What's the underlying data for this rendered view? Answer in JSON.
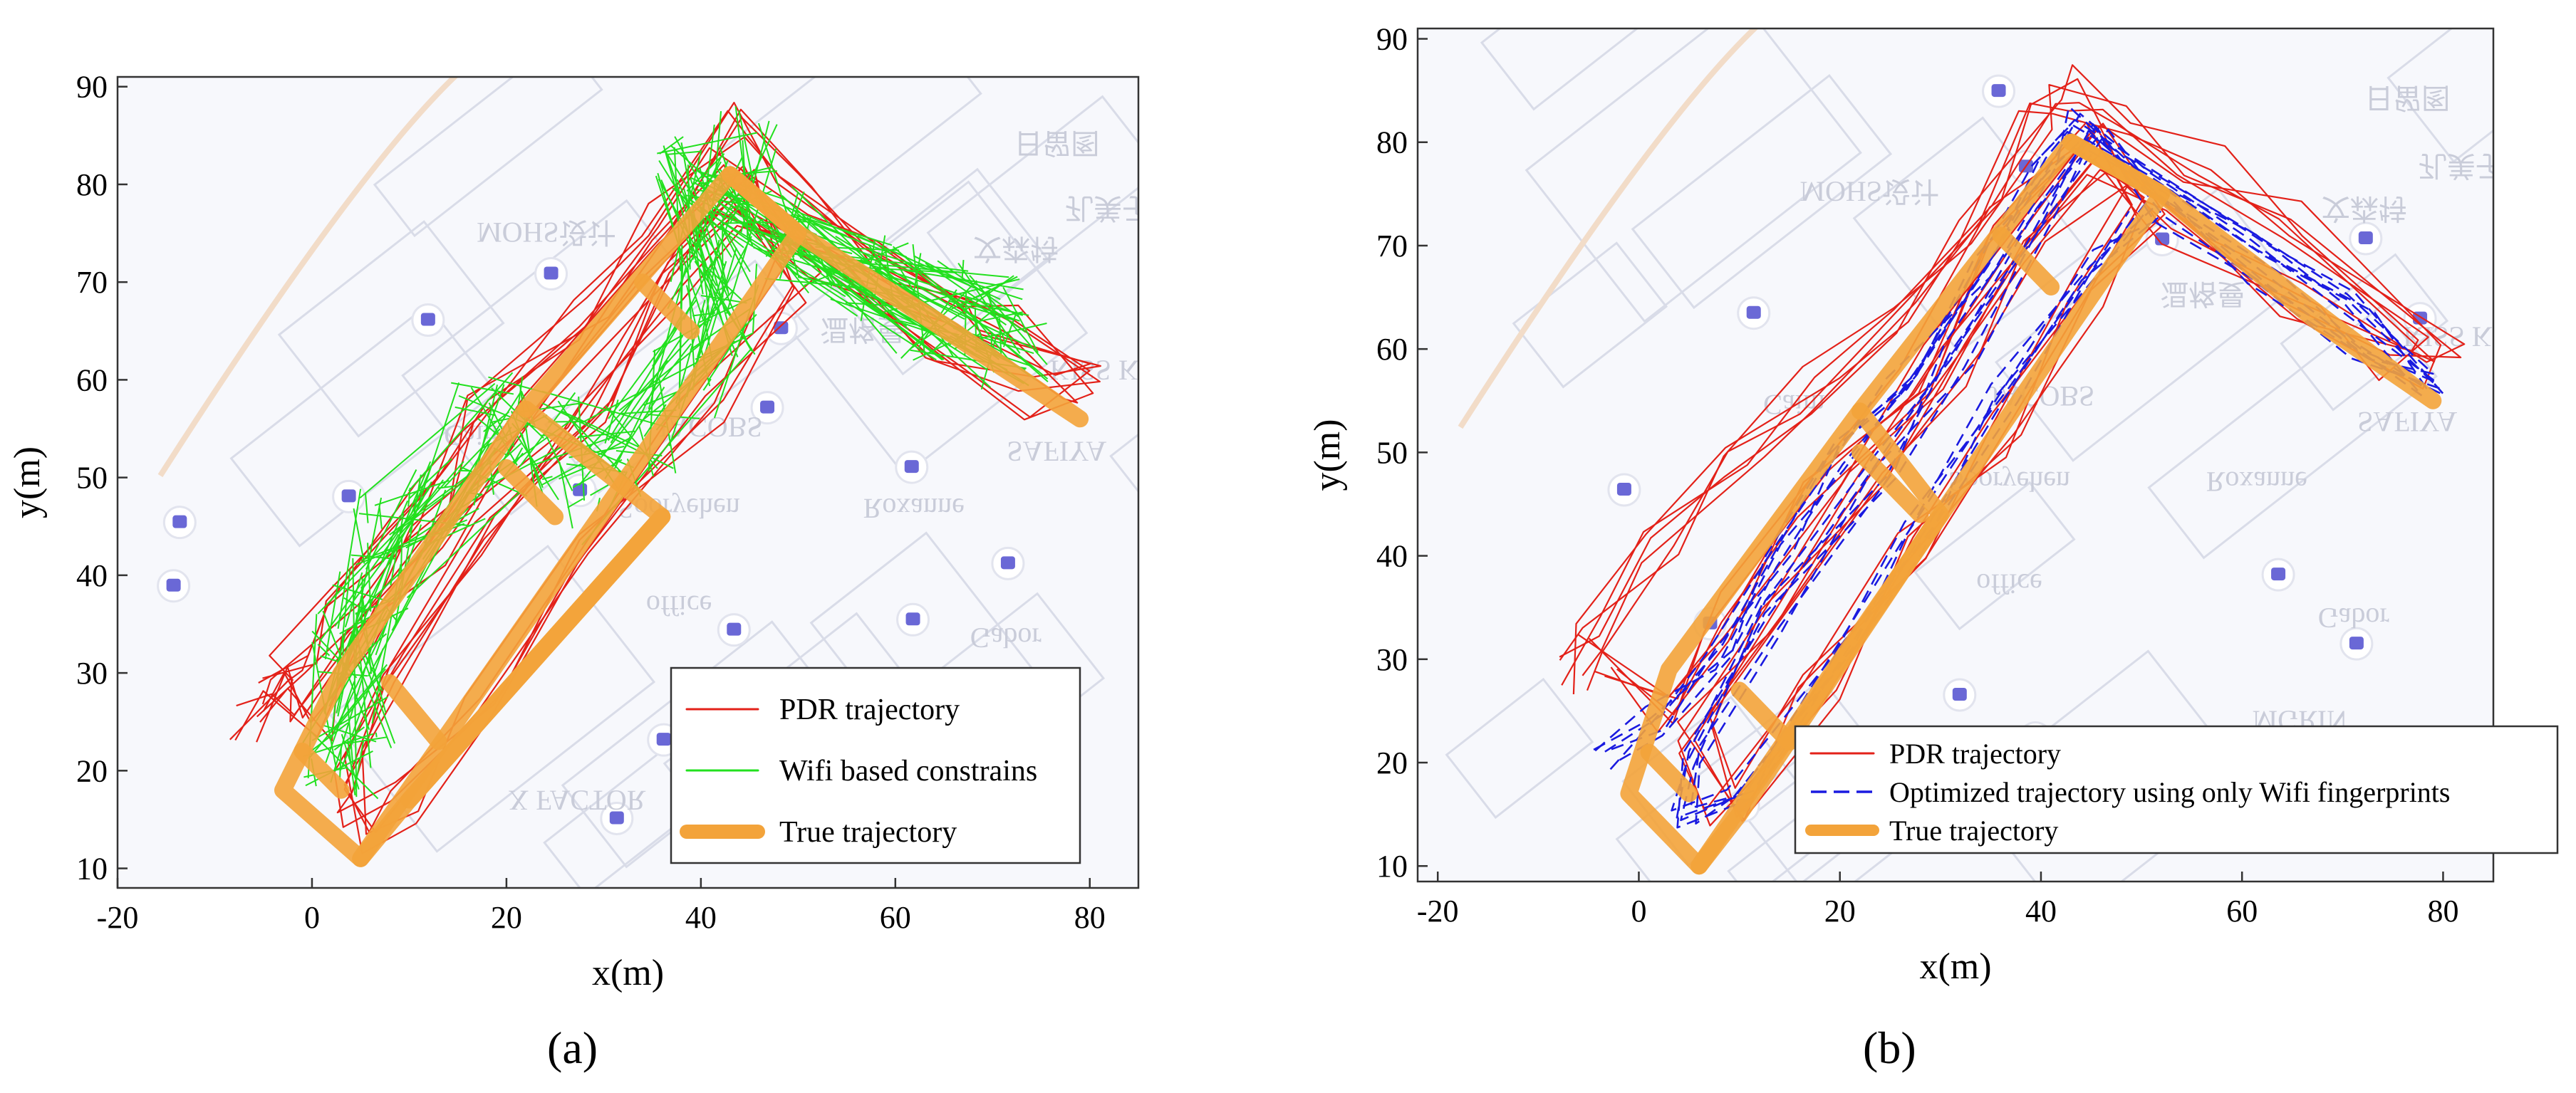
{
  "colors": {
    "pdr": "#e32119",
    "wifi": "#22e01e",
    "optimized": "#1a1ae0",
    "truth": "#f3a33a",
    "map_bg": "#f7f8fc",
    "map_lines": "#d9dce8",
    "map_poi": "#6a68d6",
    "map_text": "#c9ccd9"
  },
  "map_labels": [
    "MOHS设计",
    "Caim",
    "JACOBS",
    "Sooryehen",
    "Roxanne",
    "office",
    "Gabor",
    "X FACTOR",
    "SAFIYA",
    "文森特",
    "温格曼",
    "日留图",
    "MGRIN",
    "KISS KIT",
    "孔美子"
  ],
  "panels": [
    {
      "label": "(a)",
      "chart_data": {
        "type": "line",
        "xlabel": "x(m)",
        "ylabel": "y(m)",
        "xlim": [
          -20,
          85
        ],
        "ylim": [
          8,
          91
        ],
        "xticks": [
          -20,
          0,
          20,
          40,
          60,
          80
        ],
        "yticks": [
          10,
          20,
          30,
          40,
          50,
          60,
          70,
          80,
          90
        ],
        "grid": false,
        "legend_position": "bottom-right",
        "series": [
          {
            "name": "PDR trajectory",
            "style": "pdr"
          },
          {
            "name": "Wifi based constrains",
            "style": "wifi"
          },
          {
            "name": "True trajectory",
            "style": "truth"
          }
        ],
        "true_trajectory": [
          [
            [
              -3,
              18
            ],
            [
              5,
              11
            ],
            [
              10,
              17
            ],
            [
              36,
              46
            ],
            [
              22,
              57
            ],
            [
              3,
              30
            ],
            [
              -3,
              18
            ]
          ],
          [
            [
              5,
              11
            ],
            [
              50,
              75
            ],
            [
              43,
              81
            ],
            [
              22,
              57
            ]
          ],
          [
            [
              -1,
              22
            ],
            [
              3,
              18
            ]
          ],
          [
            [
              8,
              29
            ],
            [
              13,
              23
            ]
          ],
          [
            [
              10,
              17
            ],
            [
              36,
              46
            ]
          ],
          [
            [
              20,
              51
            ],
            [
              25,
              46
            ]
          ],
          [
            [
              34,
              70
            ],
            [
              39,
              65
            ]
          ],
          [
            [
              43,
              81
            ],
            [
              50,
              75
            ],
            [
              79,
              56
            ],
            [
              66,
              65
            ],
            [
              50,
              75
            ]
          ]
        ],
        "pdr_base": [
          [
            -4,
            28
          ],
          [
            -2,
            31
          ],
          [
            3,
            37
          ],
          [
            12,
            48
          ],
          [
            18,
            56
          ],
          [
            29,
            66
          ],
          [
            36,
            76
          ],
          [
            43,
            86
          ],
          [
            49,
            79
          ],
          [
            58,
            72
          ],
          [
            66,
            69
          ],
          [
            71,
            66
          ],
          [
            79,
            60
          ],
          [
            75,
            58
          ],
          [
            65,
            64
          ],
          [
            52,
            73
          ],
          [
            44,
            78
          ],
          [
            36,
            70
          ],
          [
            30,
            58
          ],
          [
            18,
            44
          ],
          [
            8,
            30
          ],
          [
            3,
            20
          ],
          [
            5,
            14
          ],
          [
            9,
            17
          ],
          [
            18,
            28
          ],
          [
            28,
            42
          ],
          [
            40,
            58
          ],
          [
            50,
            70
          ],
          [
            44,
            80
          ],
          [
            36,
            72
          ],
          [
            24,
            57
          ],
          [
            12,
            43
          ],
          [
            4,
            32
          ],
          [
            0,
            24
          ],
          [
            -3,
            30
          ],
          [
            -6,
            25
          ]
        ],
        "wifi_base": [
          [
            3,
            21
          ],
          [
            5,
            26
          ],
          [
            4,
            33
          ],
          [
            6,
            38
          ],
          [
            8,
            45
          ],
          [
            14,
            48
          ],
          [
            20,
            52
          ],
          [
            18,
            57
          ],
          [
            24,
            55
          ],
          [
            27,
            47
          ],
          [
            30,
            52
          ],
          [
            34,
            54
          ],
          [
            38,
            60
          ],
          [
            42,
            66
          ],
          [
            40,
            70
          ],
          [
            42,
            75
          ],
          [
            39,
            82
          ],
          [
            44,
            84
          ],
          [
            42,
            78
          ],
          [
            48,
            76
          ],
          [
            54,
            72
          ],
          [
            60,
            70
          ],
          [
            64,
            69
          ],
          [
            67,
            66
          ],
          [
            70,
            67
          ],
          [
            72,
            63
          ],
          [
            64,
            66
          ],
          [
            56,
            71
          ],
          [
            48,
            74
          ]
        ]
      }
    },
    {
      "label": "(b)",
      "chart_data": {
        "type": "line",
        "xlabel": "x(m)",
        "ylabel": "y(m)",
        "xlim": [
          -22,
          85
        ],
        "ylim": [
          8.5,
          91
        ],
        "xticks": [
          -20,
          0,
          20,
          40,
          60,
          80
        ],
        "yticks": [
          10,
          20,
          30,
          40,
          50,
          60,
          70,
          80,
          90
        ],
        "grid": false,
        "legend_position": "bottom-right",
        "series": [
          {
            "name": "PDR trajectory",
            "style": "pdr"
          },
          {
            "name": "Optimized trajectory using only Wifi fingerprints",
            "style": "optimized"
          },
          {
            "name": "True trajectory",
            "style": "truth"
          }
        ],
        "true_trajectory": [
          [
            [
              -1,
              17
            ],
            [
              6,
              10
            ],
            [
              10,
              15
            ],
            [
              30,
              44
            ],
            [
              22,
              54
            ],
            [
              3,
              29
            ],
            [
              -1,
              17
            ]
          ],
          [
            [
              6,
              10
            ],
            [
              52,
              75
            ],
            [
              43,
              80
            ],
            [
              22,
              54
            ]
          ],
          [
            [
              1,
              21
            ],
            [
              5,
              17
            ]
          ],
          [
            [
              10,
              27
            ],
            [
              15,
              22
            ]
          ],
          [
            [
              22,
              50
            ],
            [
              28,
              44
            ]
          ],
          [
            [
              36,
              71
            ],
            [
              41,
              66
            ]
          ],
          [
            [
              43,
              80
            ],
            [
              52,
              75
            ],
            [
              79,
              55
            ],
            [
              67,
              63
            ],
            [
              52,
              75
            ]
          ]
        ],
        "pdr_base": [
          [
            -6,
            28
          ],
          [
            -4,
            33
          ],
          [
            2,
            40
          ],
          [
            10,
            48
          ],
          [
            18,
            56
          ],
          [
            26,
            62
          ],
          [
            34,
            72
          ],
          [
            40,
            82
          ],
          [
            43,
            85
          ],
          [
            48,
            82
          ],
          [
            56,
            78
          ],
          [
            66,
            72
          ],
          [
            80,
            60
          ],
          [
            76,
            58
          ],
          [
            66,
            64
          ],
          [
            54,
            72
          ],
          [
            46,
            78
          ],
          [
            38,
            70
          ],
          [
            32,
            58
          ],
          [
            22,
            46
          ],
          [
            12,
            34
          ],
          [
            6,
            22
          ],
          [
            8,
            16
          ],
          [
            18,
            28
          ],
          [
            28,
            40
          ],
          [
            36,
            52
          ],
          [
            44,
            66
          ],
          [
            50,
            74
          ],
          [
            44,
            80
          ],
          [
            36,
            72
          ],
          [
            28,
            58
          ],
          [
            18,
            46
          ],
          [
            8,
            34
          ],
          [
            2,
            24
          ],
          [
            -4,
            30
          ]
        ],
        "opt_base": [
          [
            -3,
            20
          ],
          [
            2,
            24
          ],
          [
            8,
            30
          ],
          [
            14,
            40
          ],
          [
            20,
            50
          ],
          [
            26,
            56
          ],
          [
            34,
            68
          ],
          [
            40,
            78
          ],
          [
            44,
            82
          ],
          [
            52,
            78
          ],
          [
            62,
            70
          ],
          [
            72,
            64
          ],
          [
            79,
            57
          ],
          [
            72,
            60
          ],
          [
            62,
            67
          ],
          [
            52,
            74
          ],
          [
            46,
            80
          ],
          [
            40,
            72
          ],
          [
            32,
            60
          ],
          [
            24,
            48
          ],
          [
            14,
            34
          ],
          [
            6,
            20
          ],
          [
            4,
            14
          ],
          [
            10,
            18
          ],
          [
            20,
            30
          ],
          [
            28,
            42
          ],
          [
            36,
            56
          ],
          [
            44,
            68
          ],
          [
            50,
            74
          ]
        ]
      }
    }
  ]
}
